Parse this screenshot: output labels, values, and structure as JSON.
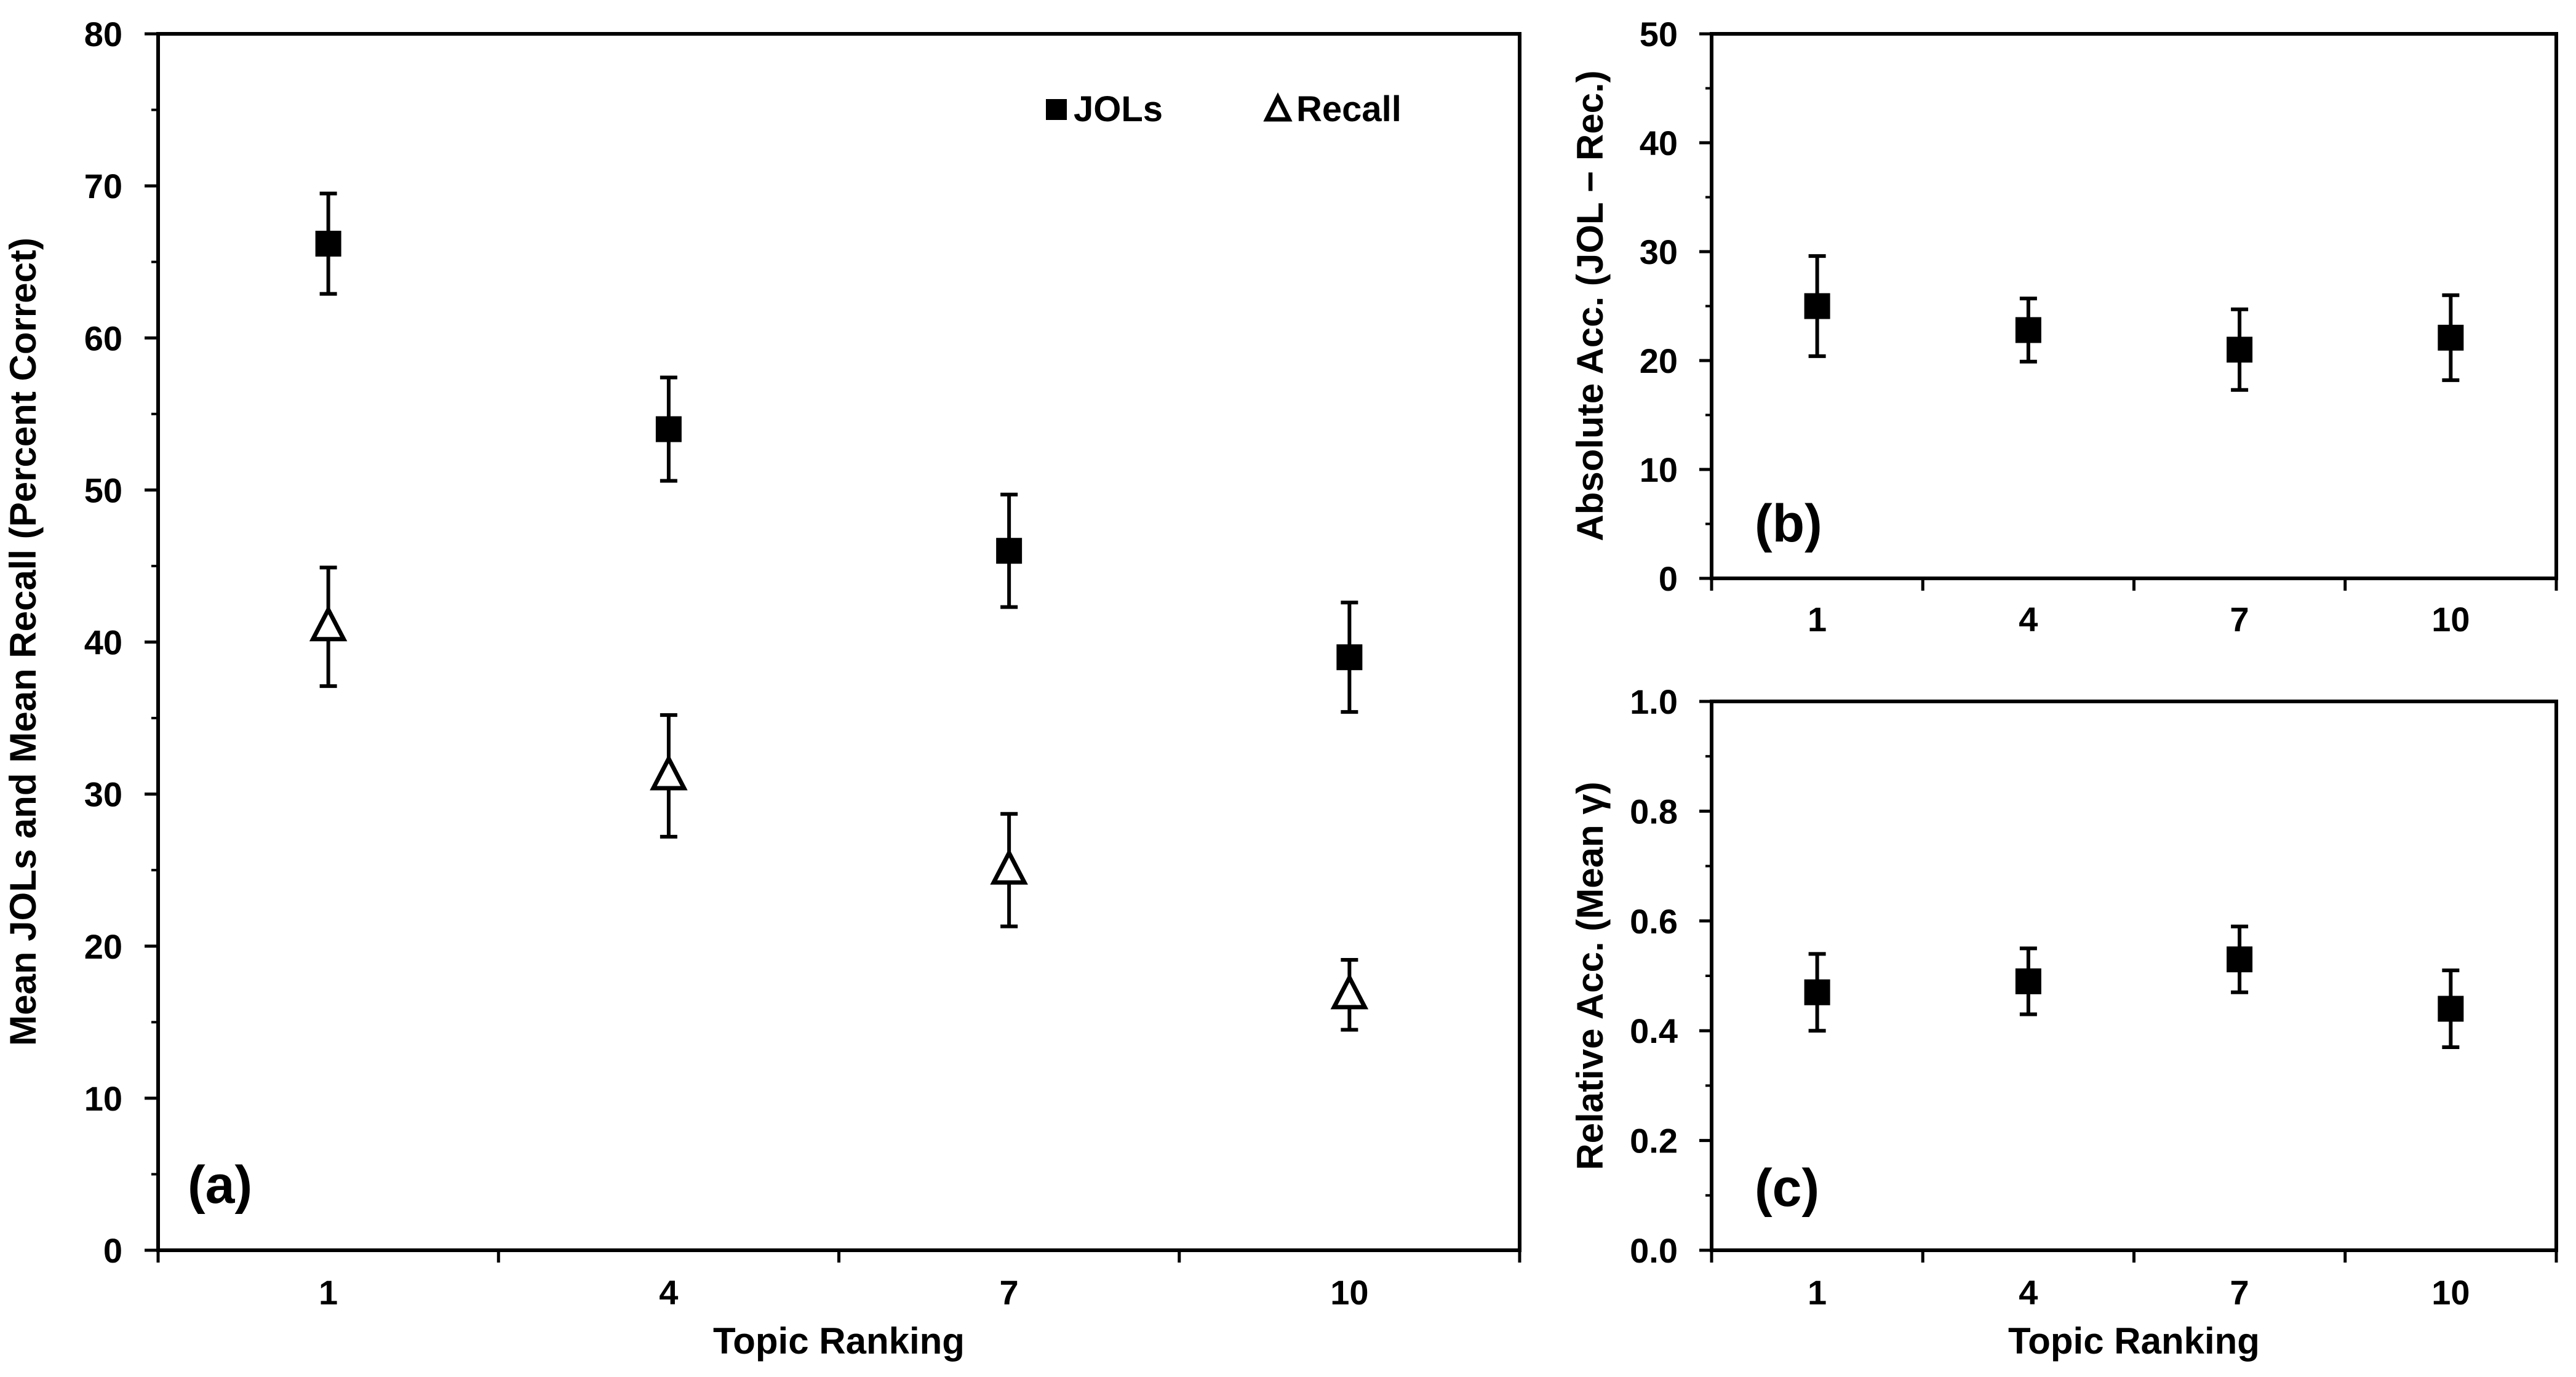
{
  "chart_data": [
    {
      "panel": "a",
      "type": "scatter",
      "panel_label": "(a)",
      "xlabel": "Topic Ranking",
      "ylabel": "Mean JOLs and Mean Recall (Percent Correct)",
      "categories": [
        "1",
        "4",
        "7",
        "10"
      ],
      "ylim": [
        0,
        80
      ],
      "yticks": [
        "0",
        "10",
        "20",
        "30",
        "40",
        "50",
        "60",
        "70",
        "80"
      ],
      "legend_position": "top-right",
      "series": [
        {
          "name": "JOLs",
          "marker": "filled-square",
          "values": [
            66.2,
            54.0,
            46.0,
            39.0
          ],
          "error": [
            3.3,
            3.4,
            3.7,
            3.6
          ]
        },
        {
          "name": "Recall",
          "marker": "open-triangle",
          "values": [
            41.0,
            31.2,
            25.0,
            16.8
          ],
          "error": [
            3.9,
            4.0,
            3.7,
            2.3
          ]
        }
      ]
    },
    {
      "panel": "b",
      "type": "scatter",
      "panel_label": "(b)",
      "xlabel": "",
      "ylabel": "Absolute Acc. (JOL − Rec.)",
      "categories": [
        "1",
        "4",
        "7",
        "10"
      ],
      "ylim": [
        0,
        50
      ],
      "yticks": [
        "0",
        "10",
        "20",
        "30",
        "40",
        "50"
      ],
      "series": [
        {
          "name": "Absolute Acc.",
          "marker": "filled-square",
          "values": [
            25.0,
            22.8,
            21.0,
            22.1
          ],
          "error": [
            4.6,
            2.9,
            3.7,
            3.9
          ]
        }
      ]
    },
    {
      "panel": "c",
      "type": "scatter",
      "panel_label": "(c)",
      "xlabel": "Topic Ranking",
      "ylabel": "Relative Acc. (Mean γ)",
      "categories": [
        "1",
        "4",
        "7",
        "10"
      ],
      "ylim": [
        0,
        1
      ],
      "yticks": [
        "0.0",
        "0.2",
        "0.4",
        "0.6",
        "0.8",
        "1.0"
      ],
      "series": [
        {
          "name": "Relative Acc.",
          "marker": "filled-square",
          "values": [
            0.47,
            0.49,
            0.53,
            0.44
          ],
          "error": [
            0.07,
            0.06,
            0.06,
            0.07
          ]
        }
      ]
    }
  ]
}
